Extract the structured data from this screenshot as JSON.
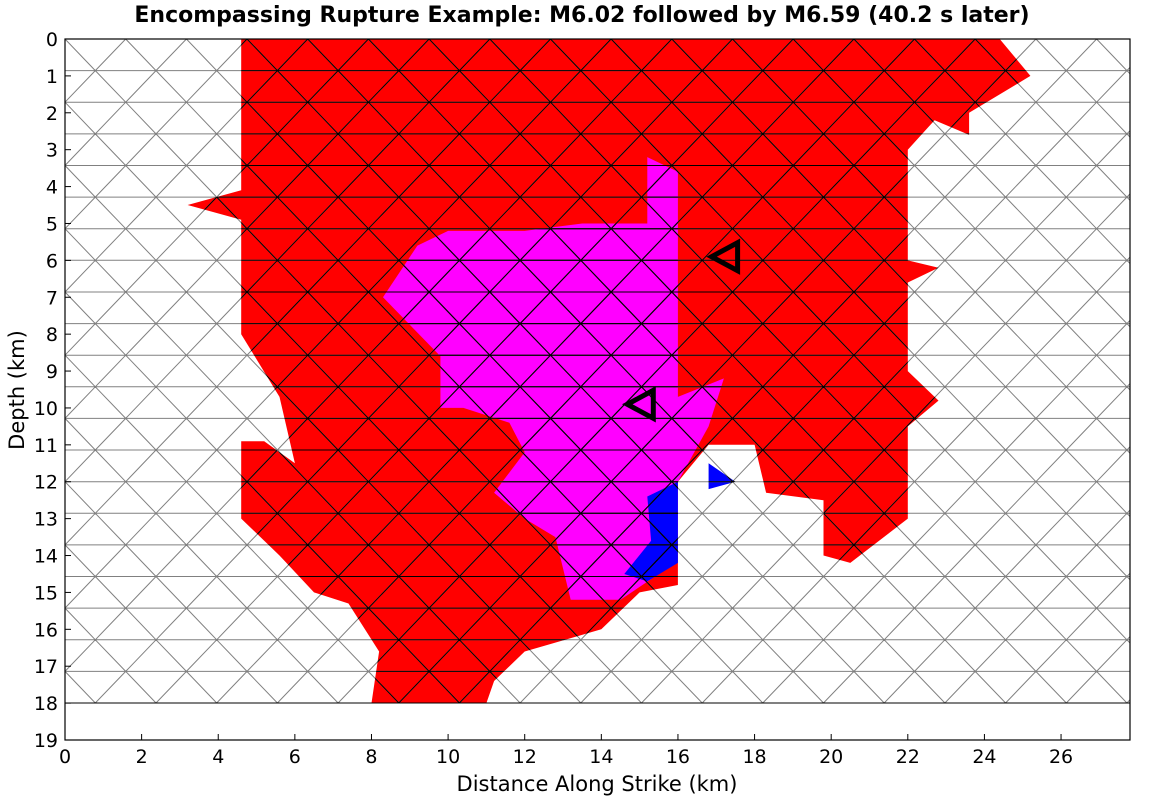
{
  "chart_data": {
    "type": "heatmap",
    "title": "Encompassing Rupture Example: M6.02 followed by M6.59 (40.2 s later)",
    "xlabel": "Distance Along Strike (km)",
    "ylabel": "Depth (km)",
    "xlim": [
      0,
      27.8
    ],
    "ylim": [
      19,
      0
    ],
    "y_inverted": true,
    "x_ticks": [
      0,
      2,
      4,
      6,
      8,
      10,
      12,
      14,
      16,
      18,
      20,
      22,
      24,
      26
    ],
    "y_ticks": [
      0,
      1,
      2,
      3,
      4,
      5,
      6,
      7,
      8,
      9,
      10,
      11,
      12,
      13,
      14,
      15,
      16,
      17,
      18,
      19
    ],
    "grid": false,
    "mesh": {
      "type": "triangular",
      "x_range": [
        0,
        27.8
      ],
      "depth_range": [
        0,
        18
      ],
      "row_height_km": 0.857,
      "triangle_base_km": 1.584
    },
    "colors": {
      "first_event": "#ff0000",
      "both_events": "#ff00ff",
      "second_event": "#0000ff",
      "unruptured": "#ffffff",
      "mesh_line": "#808080",
      "ruptured_edge": "#000000"
    },
    "regions": [
      {
        "name": "first-event-rupture",
        "color": "#ff0000",
        "polygon": [
          [
            4.6,
            0
          ],
          [
            24.4,
            0
          ],
          [
            25.2,
            1
          ],
          [
            23.6,
            2
          ],
          [
            23.6,
            2.6
          ],
          [
            22.7,
            2.2
          ],
          [
            22,
            3
          ],
          [
            22,
            6
          ],
          [
            22.8,
            6.2
          ],
          [
            22,
            6.6
          ],
          [
            22,
            9
          ],
          [
            22.8,
            9.8
          ],
          [
            22,
            10.5
          ],
          [
            22,
            13
          ],
          [
            20.5,
            14.2
          ],
          [
            19.8,
            14
          ],
          [
            19.8,
            12.5
          ],
          [
            18.3,
            12.3
          ],
          [
            18,
            11
          ],
          [
            16.8,
            11
          ],
          [
            16,
            12
          ],
          [
            16,
            14.8
          ],
          [
            15,
            15
          ],
          [
            14,
            16
          ],
          [
            12,
            16.6
          ],
          [
            11.2,
            17.4
          ],
          [
            11,
            18
          ],
          [
            8,
            18
          ],
          [
            8.2,
            16.6
          ],
          [
            7.4,
            15.3
          ],
          [
            6.5,
            15
          ],
          [
            5.6,
            14
          ],
          [
            4.6,
            13
          ],
          [
            4.6,
            10.9
          ],
          [
            5.2,
            10.9
          ],
          [
            6,
            11.5
          ],
          [
            5.6,
            9.7
          ],
          [
            4.6,
            8
          ],
          [
            4.6,
            6.3
          ],
          [
            4.6,
            4.9
          ],
          [
            3.2,
            4.5
          ],
          [
            4.6,
            4.1
          ]
        ]
      },
      {
        "name": "overlap-rupture",
        "color": "#ff00ff",
        "polygon": [
          [
            15.2,
            3.2
          ],
          [
            16,
            3.6
          ],
          [
            16,
            9.7
          ],
          [
            17.2,
            9.2
          ],
          [
            16.8,
            10.5
          ],
          [
            16,
            12
          ],
          [
            16,
            13.4
          ],
          [
            15.5,
            14.5
          ],
          [
            14.5,
            15.2
          ],
          [
            13.2,
            15.2
          ],
          [
            12.8,
            13.5
          ],
          [
            12,
            13
          ],
          [
            11.2,
            12.3
          ],
          [
            12,
            11.2
          ],
          [
            11.6,
            10.4
          ],
          [
            10.4,
            10
          ],
          [
            9.8,
            10
          ],
          [
            9.8,
            8.6
          ],
          [
            8.3,
            7
          ],
          [
            9.2,
            5.6
          ],
          [
            10,
            5.2
          ],
          [
            12,
            5.2
          ],
          [
            13.5,
            5
          ],
          [
            15.2,
            5
          ]
        ]
      },
      {
        "name": "second-event-only",
        "color": "#0000ff",
        "polygon": [
          [
            16,
            12
          ],
          [
            16,
            14.2
          ],
          [
            15.2,
            14.7
          ],
          [
            14.6,
            14.5
          ],
          [
            15.3,
            13.6
          ],
          [
            15.2,
            12.4
          ]
        ]
      },
      {
        "name": "second-event-only-small",
        "color": "#0000ff",
        "polygon": [
          [
            16.8,
            11.5
          ],
          [
            17.5,
            12
          ],
          [
            16.8,
            12.2
          ]
        ]
      }
    ],
    "markers": [
      {
        "name": "hypocenter-first-event",
        "shape": "triangle-left-open",
        "x": 17.4,
        "depth": 5.9
      },
      {
        "name": "hypocenter-second-event",
        "shape": "triangle-left-open",
        "x": 15.2,
        "depth": 9.9
      }
    ]
  }
}
